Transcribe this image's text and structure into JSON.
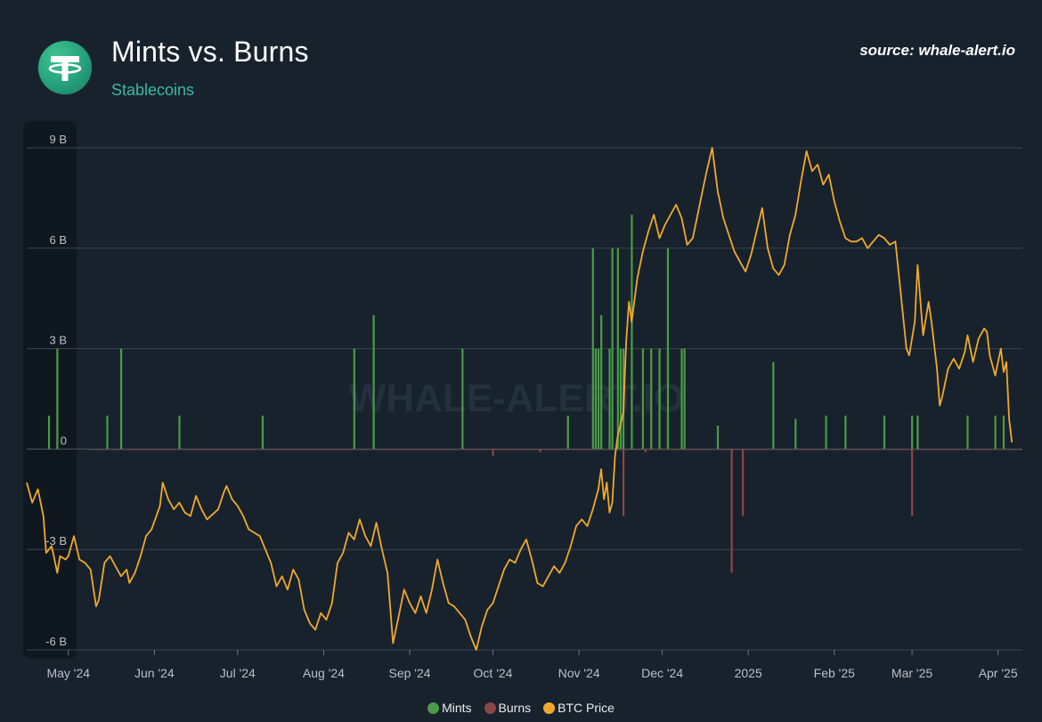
{
  "header": {
    "title": "Mints vs. Burns",
    "subtitle": "Stablecoins",
    "source": "source: whale-alert.io",
    "logo_icon": "tether-logo-icon",
    "watermark": "WHALE-ALERT.IO"
  },
  "colors": {
    "background": "#18222c",
    "mints": "#4a9c48",
    "burns": "#8c4646",
    "btc": "#f0a92e",
    "grid": "#3a4550",
    "axis_text": "#b8c0c8"
  },
  "legend": {
    "mints": "Mints",
    "burns": "Burns",
    "btc": "BTC Price"
  },
  "chart_data": {
    "type": "bar",
    "y_unit": "B",
    "ylim": [
      -6,
      9
    ],
    "y_ticks": [
      {
        "value": 9,
        "label": "9 B"
      },
      {
        "value": 6,
        "label": "6 B"
      },
      {
        "value": 3,
        "label": "3 B"
      },
      {
        "value": 0,
        "label": "0"
      },
      {
        "value": -3,
        "label": "-3 B"
      },
      {
        "value": -6,
        "label": "-6 B"
      }
    ],
    "x_range": [
      "2024-04-16",
      "2025-04-04"
    ],
    "x_ticks": [
      {
        "date": "2024-05-01",
        "label": "May '24"
      },
      {
        "date": "2024-06-01",
        "label": "Jun '24"
      },
      {
        "date": "2024-07-01",
        "label": "Jul '24"
      },
      {
        "date": "2024-08-01",
        "label": "Aug '24"
      },
      {
        "date": "2024-09-01",
        "label": "Sep '24"
      },
      {
        "date": "2024-10-01",
        "label": "Oct '24"
      },
      {
        "date": "2024-11-01",
        "label": "Nov '24"
      },
      {
        "date": "2024-12-01",
        "label": "Dec '24"
      },
      {
        "date": "2025-01-01",
        "label": "2025"
      },
      {
        "date": "2025-02-01",
        "label": "Feb '25"
      },
      {
        "date": "2025-03-01",
        "label": "Mar '25"
      },
      {
        "date": "2025-04-01",
        "label": "Apr '25"
      }
    ],
    "series": [
      {
        "name": "Mints",
        "type": "bar",
        "points": [
          [
            "2024-04-24",
            1.0
          ],
          [
            "2024-04-27",
            3.0
          ],
          [
            "2024-05-15",
            1.0
          ],
          [
            "2024-05-20",
            3.0
          ],
          [
            "2024-06-10",
            1.0
          ],
          [
            "2024-07-10",
            1.0
          ],
          [
            "2024-08-12",
            3.0
          ],
          [
            "2024-08-19",
            4.0
          ],
          [
            "2024-09-20",
            3.0
          ],
          [
            "2024-10-28",
            1.0
          ],
          [
            "2024-11-06",
            6.0
          ],
          [
            "2024-11-07",
            3.0
          ],
          [
            "2024-11-08",
            3.0
          ],
          [
            "2024-11-09",
            4.0
          ],
          [
            "2024-11-12",
            3.0
          ],
          [
            "2024-11-13",
            6.0
          ],
          [
            "2024-11-15",
            6.0
          ],
          [
            "2024-11-16",
            3.0
          ],
          [
            "2024-11-17",
            3.0
          ],
          [
            "2024-11-20",
            7.0
          ],
          [
            "2024-11-24",
            3.0
          ],
          [
            "2024-11-27",
            3.0
          ],
          [
            "2024-11-30",
            3.0
          ],
          [
            "2024-12-03",
            6.0
          ],
          [
            "2024-12-08",
            3.0
          ],
          [
            "2024-12-09",
            3.0
          ],
          [
            "2024-12-21",
            0.7
          ],
          [
            "2025-01-10",
            2.6
          ],
          [
            "2025-01-18",
            0.9
          ],
          [
            "2025-01-29",
            1.0
          ],
          [
            "2025-02-05",
            1.0
          ],
          [
            "2025-02-19",
            1.0
          ],
          [
            "2025-03-01",
            1.0
          ],
          [
            "2025-03-03",
            1.0
          ],
          [
            "2025-03-21",
            1.0
          ],
          [
            "2025-03-31",
            1.0
          ],
          [
            "2025-04-03",
            1.0
          ]
        ]
      },
      {
        "name": "Burns",
        "type": "bar",
        "points": [
          [
            "2024-10-01",
            -0.2
          ],
          [
            "2024-10-18",
            -0.1
          ],
          [
            "2024-11-17",
            -2.0
          ],
          [
            "2024-11-25",
            -0.1
          ],
          [
            "2024-12-26",
            -3.7
          ],
          [
            "2024-12-30",
            -2.0
          ],
          [
            "2025-03-01",
            -2.0
          ]
        ]
      },
      {
        "name": "BTC Price",
        "type": "line",
        "points": [
          [
            "2024-04-16",
            -1.0
          ],
          [
            "2024-04-18",
            -1.6
          ],
          [
            "2024-04-20",
            -1.2
          ],
          [
            "2024-04-22",
            -2.0
          ],
          [
            "2024-04-23",
            -3.1
          ],
          [
            "2024-04-25",
            -2.9
          ],
          [
            "2024-04-26",
            -3.3
          ],
          [
            "2024-04-27",
            -3.7
          ],
          [
            "2024-04-28",
            -3.2
          ],
          [
            "2024-04-30",
            -3.3
          ],
          [
            "2024-05-01",
            -3.2
          ],
          [
            "2024-05-03",
            -2.6
          ],
          [
            "2024-05-05",
            -3.3
          ],
          [
            "2024-05-07",
            -3.4
          ],
          [
            "2024-05-09",
            -3.6
          ],
          [
            "2024-05-11",
            -4.7
          ],
          [
            "2024-05-12",
            -4.5
          ],
          [
            "2024-05-14",
            -3.4
          ],
          [
            "2024-05-16",
            -3.2
          ],
          [
            "2024-05-18",
            -3.5
          ],
          [
            "2024-05-20",
            -3.8
          ],
          [
            "2024-05-22",
            -3.6
          ],
          [
            "2024-05-23",
            -4.0
          ],
          [
            "2024-05-25",
            -3.7
          ],
          [
            "2024-05-27",
            -3.2
          ],
          [
            "2024-05-29",
            -2.6
          ],
          [
            "2024-05-31",
            -2.4
          ],
          [
            "2024-06-03",
            -1.7
          ],
          [
            "2024-06-04",
            -1.0
          ],
          [
            "2024-06-06",
            -1.5
          ],
          [
            "2024-06-08",
            -1.8
          ],
          [
            "2024-06-10",
            -1.6
          ],
          [
            "2024-06-12",
            -1.9
          ],
          [
            "2024-06-14",
            -2.0
          ],
          [
            "2024-06-16",
            -1.4
          ],
          [
            "2024-06-18",
            -1.8
          ],
          [
            "2024-06-20",
            -2.1
          ],
          [
            "2024-06-24",
            -1.8
          ],
          [
            "2024-06-26",
            -1.3
          ],
          [
            "2024-06-27",
            -1.1
          ],
          [
            "2024-06-29",
            -1.5
          ],
          [
            "2024-07-01",
            -1.7
          ],
          [
            "2024-07-03",
            -2.0
          ],
          [
            "2024-07-05",
            -2.4
          ],
          [
            "2024-07-07",
            -2.5
          ],
          [
            "2024-07-09",
            -2.6
          ],
          [
            "2024-07-11",
            -3.0
          ],
          [
            "2024-07-13",
            -3.4
          ],
          [
            "2024-07-15",
            -4.1
          ],
          [
            "2024-07-17",
            -3.8
          ],
          [
            "2024-07-19",
            -4.2
          ],
          [
            "2024-07-21",
            -3.6
          ],
          [
            "2024-07-23",
            -3.9
          ],
          [
            "2024-07-25",
            -4.8
          ],
          [
            "2024-07-27",
            -5.2
          ],
          [
            "2024-07-29",
            -5.4
          ],
          [
            "2024-07-31",
            -4.9
          ],
          [
            "2024-08-02",
            -5.1
          ],
          [
            "2024-08-04",
            -4.6
          ],
          [
            "2024-08-06",
            -3.4
          ],
          [
            "2024-08-08",
            -3.1
          ],
          [
            "2024-08-10",
            -2.5
          ],
          [
            "2024-08-12",
            -2.7
          ],
          [
            "2024-08-14",
            -2.1
          ],
          [
            "2024-08-16",
            -2.6
          ],
          [
            "2024-08-18",
            -2.9
          ],
          [
            "2024-08-20",
            -2.2
          ],
          [
            "2024-08-22",
            -3.0
          ],
          [
            "2024-08-24",
            -3.7
          ],
          [
            "2024-08-26",
            -5.8
          ],
          [
            "2024-08-28",
            -5.0
          ],
          [
            "2024-08-30",
            -4.2
          ],
          [
            "2024-09-01",
            -4.6
          ],
          [
            "2024-09-03",
            -4.9
          ],
          [
            "2024-09-05",
            -4.4
          ],
          [
            "2024-09-07",
            -4.9
          ],
          [
            "2024-09-09",
            -4.2
          ],
          [
            "2024-09-11",
            -3.3
          ],
          [
            "2024-09-13",
            -4.0
          ],
          [
            "2024-09-15",
            -4.6
          ],
          [
            "2024-09-17",
            -4.7
          ],
          [
            "2024-09-19",
            -4.9
          ],
          [
            "2024-09-21",
            -5.1
          ],
          [
            "2024-09-23",
            -5.6
          ],
          [
            "2024-09-25",
            -6.0
          ],
          [
            "2024-09-27",
            -5.3
          ],
          [
            "2024-09-29",
            -4.8
          ],
          [
            "2024-10-01",
            -4.6
          ],
          [
            "2024-10-03",
            -4.1
          ],
          [
            "2024-10-05",
            -3.6
          ],
          [
            "2024-10-07",
            -3.3
          ],
          [
            "2024-10-09",
            -3.4
          ],
          [
            "2024-10-11",
            -3.0
          ],
          [
            "2024-10-13",
            -2.7
          ],
          [
            "2024-10-15",
            -3.3
          ],
          [
            "2024-10-17",
            -4.0
          ],
          [
            "2024-10-19",
            -4.1
          ],
          [
            "2024-10-21",
            -3.8
          ],
          [
            "2024-10-23",
            -3.5
          ],
          [
            "2024-10-25",
            -3.7
          ],
          [
            "2024-10-27",
            -3.4
          ],
          [
            "2024-10-29",
            -2.9
          ],
          [
            "2024-10-31",
            -2.3
          ],
          [
            "2024-11-02",
            -2.1
          ],
          [
            "2024-11-04",
            -2.3
          ],
          [
            "2024-11-06",
            -1.8
          ],
          [
            "2024-11-08",
            -1.2
          ],
          [
            "2024-11-09",
            -0.6
          ],
          [
            "2024-11-10",
            -1.5
          ],
          [
            "2024-11-11",
            -1.0
          ],
          [
            "2024-11-12",
            -1.9
          ],
          [
            "2024-11-13",
            -1.6
          ],
          [
            "2024-11-14",
            -0.2
          ],
          [
            "2024-11-15",
            0.4
          ],
          [
            "2024-11-17",
            1.1
          ],
          [
            "2024-11-18",
            3.2
          ],
          [
            "2024-11-19",
            4.4
          ],
          [
            "2024-11-20",
            3.8
          ],
          [
            "2024-11-22",
            5.1
          ],
          [
            "2024-11-24",
            5.9
          ],
          [
            "2024-11-26",
            6.5
          ],
          [
            "2024-11-28",
            7.0
          ],
          [
            "2024-11-30",
            6.3
          ],
          [
            "2024-12-02",
            6.7
          ],
          [
            "2024-12-04",
            7.0
          ],
          [
            "2024-12-06",
            7.3
          ],
          [
            "2024-12-08",
            6.9
          ],
          [
            "2024-12-10",
            6.1
          ],
          [
            "2024-12-12",
            6.3
          ],
          [
            "2024-12-14",
            7.1
          ],
          [
            "2024-12-16",
            7.9
          ],
          [
            "2024-12-17",
            8.3
          ],
          [
            "2024-12-19",
            9.0
          ],
          [
            "2024-12-21",
            7.7
          ],
          [
            "2024-12-23",
            6.9
          ],
          [
            "2024-12-25",
            6.4
          ],
          [
            "2024-12-27",
            5.9
          ],
          [
            "2024-12-29",
            5.6
          ],
          [
            "2024-12-31",
            5.3
          ],
          [
            "2025-01-02",
            5.8
          ],
          [
            "2025-01-04",
            6.5
          ],
          [
            "2025-01-06",
            7.2
          ],
          [
            "2025-01-08",
            6.0
          ],
          [
            "2025-01-10",
            5.4
          ],
          [
            "2025-01-12",
            5.2
          ],
          [
            "2025-01-14",
            5.5
          ],
          [
            "2025-01-16",
            6.4
          ],
          [
            "2025-01-18",
            7.0
          ],
          [
            "2025-01-20",
            8.0
          ],
          [
            "2025-01-22",
            8.9
          ],
          [
            "2025-01-24",
            8.3
          ],
          [
            "2025-01-26",
            8.5
          ],
          [
            "2025-01-28",
            7.9
          ],
          [
            "2025-01-30",
            8.2
          ],
          [
            "2025-02-01",
            7.4
          ],
          [
            "2025-02-03",
            6.8
          ],
          [
            "2025-02-05",
            6.3
          ],
          [
            "2025-02-07",
            6.2
          ],
          [
            "2025-02-09",
            6.2
          ],
          [
            "2025-02-11",
            6.3
          ],
          [
            "2025-02-13",
            6.0
          ],
          [
            "2025-02-15",
            6.2
          ],
          [
            "2025-02-17",
            6.4
          ],
          [
            "2025-02-19",
            6.3
          ],
          [
            "2025-02-21",
            6.1
          ],
          [
            "2025-02-23",
            6.2
          ],
          [
            "2025-02-25",
            4.6
          ],
          [
            "2025-02-27",
            3.0
          ],
          [
            "2025-02-28",
            2.8
          ],
          [
            "2025-03-02",
            3.8
          ],
          [
            "2025-03-03",
            5.5
          ],
          [
            "2025-03-05",
            3.4
          ],
          [
            "2025-03-07",
            4.4
          ],
          [
            "2025-03-08",
            3.8
          ],
          [
            "2025-03-10",
            2.4
          ],
          [
            "2025-03-11",
            1.3
          ],
          [
            "2025-03-12",
            1.6
          ],
          [
            "2025-03-14",
            2.4
          ],
          [
            "2025-03-16",
            2.7
          ],
          [
            "2025-03-18",
            2.4
          ],
          [
            "2025-03-20",
            2.9
          ],
          [
            "2025-03-21",
            3.4
          ],
          [
            "2025-03-23",
            2.6
          ],
          [
            "2025-03-25",
            3.3
          ],
          [
            "2025-03-27",
            3.6
          ],
          [
            "2025-03-28",
            3.5
          ],
          [
            "2025-03-29",
            2.8
          ],
          [
            "2025-03-31",
            2.2
          ],
          [
            "2025-04-02",
            3.0
          ],
          [
            "2025-04-03",
            2.3
          ],
          [
            "2025-04-04",
            2.6
          ],
          [
            "2025-04-05",
            0.9
          ],
          [
            "2025-04-06",
            0.2
          ]
        ]
      }
    ]
  }
}
